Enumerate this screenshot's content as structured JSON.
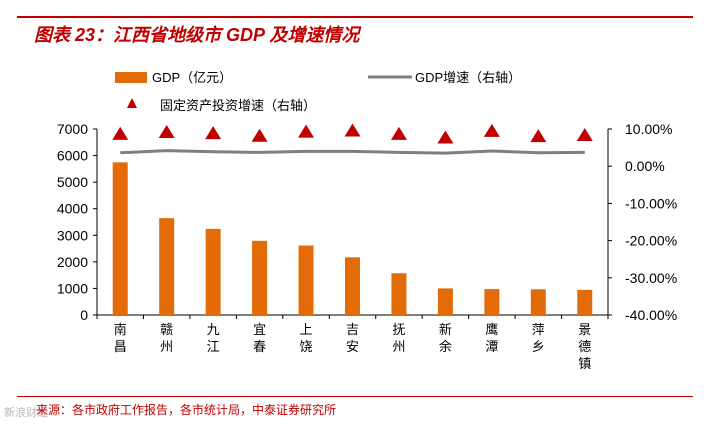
{
  "header": {
    "title": "图表 23：江西省地级市 GDP 及增速情况"
  },
  "footer": {
    "source": "来源：各市政府工作报告，各市统计局，中泰证券研究所",
    "watermark": "新浪财经"
  },
  "colors": {
    "bar": "#e36c09",
    "growth_line": "#7f7f7f",
    "investment": "#c00000",
    "title": "#c00000",
    "axis_text": "#000000"
  },
  "chart_data": {
    "type": "bar",
    "title": "江西省地级市 GDP 及增速情况",
    "categories": [
      "南昌",
      "赣州",
      "九江",
      "宜春",
      "上饶",
      "吉安",
      "抚州",
      "新余",
      "鹰潭",
      "萍乡",
      "景德镇"
    ],
    "category_labels": [
      [
        "南",
        "昌"
      ],
      [
        "赣",
        "州"
      ],
      [
        "九",
        "江"
      ],
      [
        "宜",
        "春"
      ],
      [
        "上",
        "饶"
      ],
      [
        "吉",
        "安"
      ],
      [
        "抚",
        "州"
      ],
      [
        "新",
        "余"
      ],
      [
        "鹰",
        "潭"
      ],
      [
        "萍",
        "乡"
      ],
      [
        "景",
        "德",
        "镇"
      ]
    ],
    "series": [
      {
        "name": "GDP（亿元）",
        "type": "bar",
        "axis": "left",
        "values": [
          5745,
          3645,
          3241,
          2792,
          2615,
          2171,
          1572,
          1001,
          976,
          967,
          946
        ]
      },
      {
        "name": "GDP增速（右轴）",
        "type": "line",
        "axis": "right",
        "values": [
          3.6,
          4.2,
          3.9,
          3.7,
          4.0,
          4.0,
          3.7,
          3.5,
          4.1,
          3.6,
          3.7
        ]
      },
      {
        "name": "固定资产投资增速（右轴）",
        "type": "scatter",
        "marker": "triangle",
        "axis": "right",
        "values": [
          8.7,
          9.2,
          8.9,
          8.2,
          9.3,
          9.6,
          8.7,
          7.7,
          9.5,
          8.1,
          8.4
        ]
      }
    ],
    "y_left": {
      "min": 0,
      "max": 7000,
      "ticks": [
        0,
        1000,
        2000,
        3000,
        4000,
        5000,
        6000,
        7000
      ],
      "tick_labels": [
        "0",
        "1000",
        "2000",
        "3000",
        "4000",
        "5000",
        "6000",
        "7000"
      ]
    },
    "y_right": {
      "min": -40,
      "max": 10,
      "ticks": [
        -40,
        -30,
        -20,
        -10,
        0,
        10
      ],
      "tick_labels": [
        "-40.00%",
        "-30.00%",
        "-20.00%",
        "-10.00%",
        "0.00%",
        "10.00%"
      ]
    },
    "legend": {
      "position": "top",
      "items": [
        "GDP（亿元）",
        "GDP增速（右轴）",
        "固定资产投资增速（右轴）"
      ]
    }
  }
}
